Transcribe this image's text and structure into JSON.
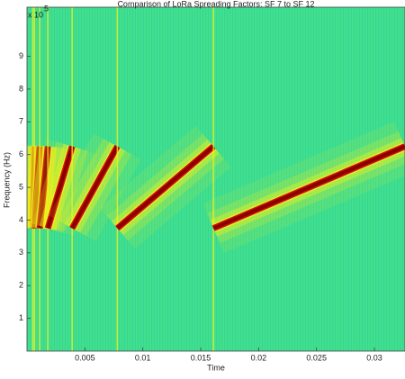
{
  "chart_data": {
    "type": "spectrogram",
    "title": "Comparison of LoRa Spreading Factors: SF 7 to SF 12",
    "xlabel": "Time",
    "ylabel": "Frequency (Hz)",
    "y_multiplier": {
      "base": "x 10",
      "exponent": "5"
    },
    "xlim": [
      0,
      0.03264
    ],
    "ylim": [
      0,
      10.5
    ],
    "xticks": [
      0.005,
      0.01,
      0.015,
      0.02,
      0.025,
      0.03
    ],
    "yticks": [
      1,
      2,
      3,
      4,
      5,
      6,
      7,
      8,
      9
    ],
    "segments": [
      {
        "x": [
          0.0005,
          0.00065
        ],
        "y": [
          3.75,
          6.25
        ]
      },
      {
        "x": [
          0.00065,
          0.0011
        ],
        "y": [
          3.75,
          6.25
        ]
      },
      {
        "x": [
          0.0011,
          0.0018
        ],
        "y": [
          3.75,
          6.25
        ]
      },
      {
        "x": [
          0.0018,
          0.0039
        ],
        "y": [
          3.75,
          6.25
        ]
      },
      {
        "x": [
          0.0039,
          0.0078
        ],
        "y": [
          3.75,
          6.25
        ]
      },
      {
        "x": [
          0.0078,
          0.0161
        ],
        "y": [
          3.75,
          6.25
        ]
      },
      {
        "x": [
          0.0161,
          0.03264
        ],
        "y": [
          3.75,
          6.25
        ]
      }
    ],
    "colors": {
      "background": "#40e08c",
      "halo": "#f2f21a",
      "chirp": "#8c0000"
    }
  }
}
